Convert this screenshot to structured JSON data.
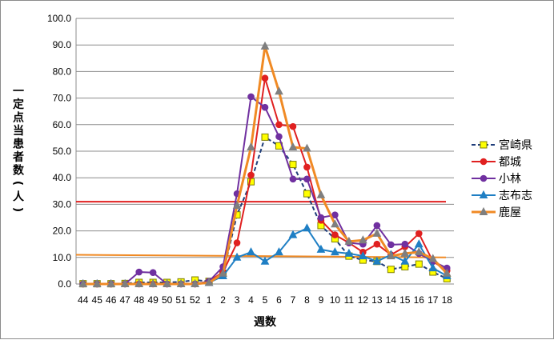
{
  "chart_data": {
    "type": "line",
    "title": "",
    "xlabel": "週数",
    "ylabel": "一定点当患者数(人)",
    "ylim": [
      0,
      100
    ],
    "yticks": [
      "0.0",
      "10.0",
      "20.0",
      "30.0",
      "40.0",
      "50.0",
      "60.0",
      "70.0",
      "80.0",
      "90.0",
      "100.0"
    ],
    "grid": "horizontal",
    "legend_position": "right",
    "categories": [
      "44",
      "45",
      "46",
      "47",
      "48",
      "49",
      "50",
      "51",
      "52",
      "1",
      "2",
      "3",
      "4",
      "5",
      "6",
      "7",
      "8",
      "9",
      "10",
      "11",
      "12",
      "13",
      "14",
      "15",
      "16",
      "17",
      "18"
    ],
    "series": [
      {
        "name": "宮崎県",
        "color": "#1f3d7a",
        "marker": "square",
        "marker_fill": "#ffff00",
        "dash": true,
        "values": [
          0.1,
          0.1,
          0.1,
          0.2,
          0.6,
          0.6,
          0.6,
          0.8,
          1.5,
          1.0,
          4.0,
          26.0,
          38.5,
          55.3,
          52.0,
          45.0,
          34.0,
          22.0,
          17.0,
          10.5,
          9.0,
          8.5,
          5.5,
          6.5,
          7.5,
          4.5,
          2.0
        ]
      },
      {
        "name": "都城",
        "color": "#e02020",
        "marker": "circle",
        "marker_fill": "#e02020",
        "dash": false,
        "values": [
          0.0,
          0.0,
          0.0,
          0.0,
          0.0,
          0.0,
          0.0,
          0.0,
          0.0,
          1.0,
          4.5,
          15.5,
          41.0,
          77.5,
          60.0,
          59.3,
          44.0,
          24.0,
          18.5,
          15.5,
          12.0,
          15.0,
          11.0,
          14.0,
          19.0,
          8.5,
          5.0
        ]
      },
      {
        "name": "小林",
        "color": "#7030a0",
        "marker": "circle",
        "marker_fill": "#7030a0",
        "dash": false,
        "values": [
          0.0,
          0.0,
          0.0,
          0.0,
          4.5,
          4.3,
          0.0,
          0.0,
          0.0,
          1.0,
          6.5,
          34.0,
          70.5,
          66.5,
          55.5,
          39.5,
          39.5,
          25.0,
          26.0,
          15.5,
          15.0,
          22.0,
          14.8,
          15.0,
          11.5,
          8.5,
          6.0
        ]
      },
      {
        "name": "志布志",
        "color": "#1f7fc4",
        "marker": "triangle",
        "marker_fill": "#1f7fc4",
        "dash": false,
        "values": [
          0.0,
          0.0,
          0.0,
          0.0,
          0.0,
          0.0,
          0.0,
          0.0,
          0.0,
          0.5,
          3.0,
          10.0,
          12.0,
          8.5,
          12.0,
          18.5,
          21.0,
          13.0,
          12.0,
          11.5,
          10.5,
          8.5,
          11.0,
          8.5,
          15.0,
          6.0,
          3.0
        ]
      },
      {
        "name": "鹿屋",
        "color": "#f08a24",
        "marker": "triangle",
        "marker_fill": "#7f7f7f",
        "dash": false,
        "values": [
          0.0,
          0.0,
          0.0,
          0.0,
          0.0,
          0.0,
          0.0,
          0.0,
          0.0,
          0.5,
          4.0,
          29.5,
          51.5,
          89.5,
          72.5,
          51.5,
          51.0,
          33.5,
          22.5,
          16.0,
          16.5,
          19.0,
          10.5,
          11.5,
          12.0,
          9.5,
          4.0
        ]
      }
    ],
    "reference_lines": [
      {
        "value": 31.0,
        "color": "#e02020"
      },
      {
        "value": 11.0,
        "end_value": 10.0,
        "color": "#f08a24"
      }
    ]
  }
}
